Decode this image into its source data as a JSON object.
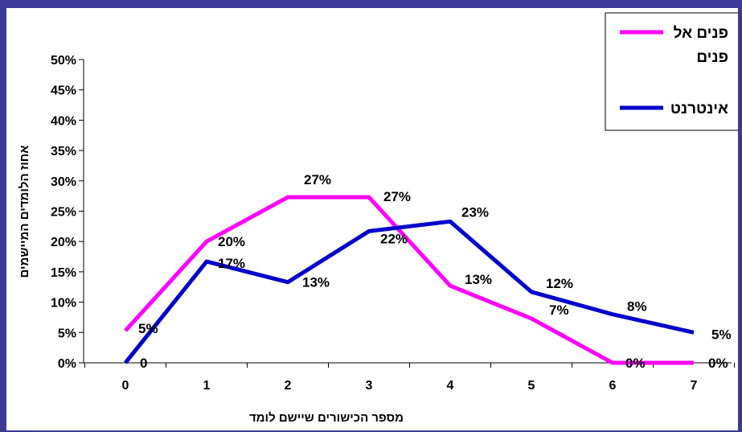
{
  "chart_data": {
    "type": "line",
    "title": "",
    "xlabel": "מספר הכישורים שיישם לומד",
    "ylabel": "אחוז הלומדים המיישמים",
    "categories": [
      "0",
      "1",
      "2",
      "3",
      "4",
      "5",
      "6",
      "7"
    ],
    "ylim": [
      0,
      0.5
    ],
    "yticks": [
      "0%",
      "5%",
      "10%",
      "15%",
      "20%",
      "25%",
      "30%",
      "35%",
      "40%",
      "45%",
      "50%"
    ],
    "grid": false,
    "legend_position": "top-right",
    "series": [
      {
        "name": "פנים אל פנים",
        "name_lines": [
          "פנים אל",
          "פנים"
        ],
        "color": "#ff00ff",
        "values": [
          0.053,
          0.2,
          0.273,
          0.273,
          0.127,
          0.073,
          0.0,
          0.0
        ],
        "labels": [
          "5%",
          "20%",
          "27%",
          "27%",
          "13%",
          "7%",
          "0%",
          "0%"
        ]
      },
      {
        "name": "אינטרנט",
        "name_lines": [
          "אינטרנט"
        ],
        "color": "#0000cc",
        "values": [
          0.0,
          0.167,
          0.133,
          0.217,
          0.233,
          0.117,
          0.08,
          0.05
        ],
        "labels": [
          "0",
          "17%",
          "13%",
          "22%",
          "23%",
          "12%",
          "8%",
          "5%"
        ]
      }
    ]
  }
}
